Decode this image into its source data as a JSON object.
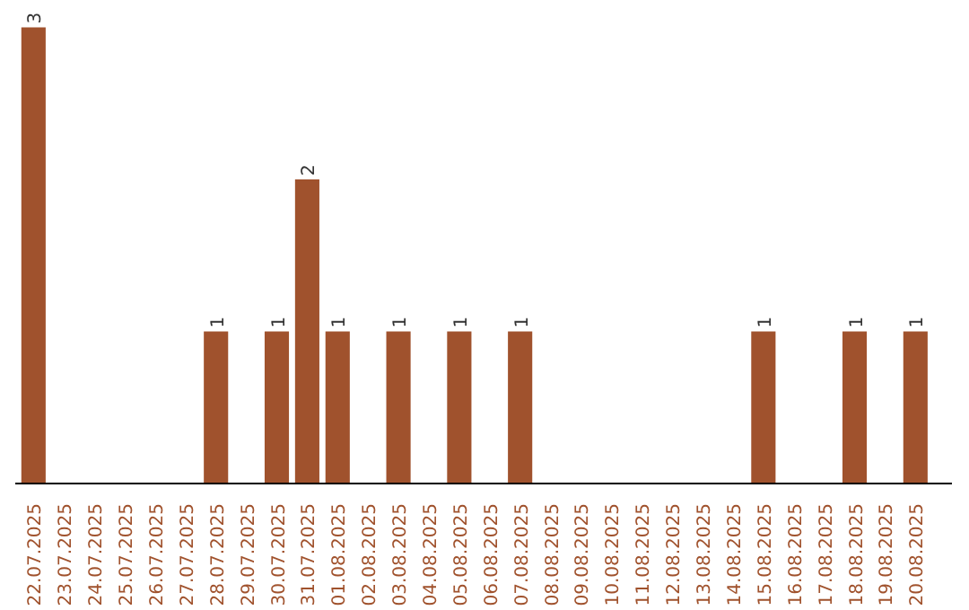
{
  "chart_data": {
    "type": "bar",
    "categories": [
      "22.07.2025",
      "23.07.2025",
      "24.07.2025",
      "25.07.2025",
      "26.07.2025",
      "27.07.2025",
      "28.07.2025",
      "29.07.2025",
      "30.07.2025",
      "31.07.2025",
      "01.08.2025",
      "02.08.2025",
      "03.08.2025",
      "04.08.2025",
      "05.08.2025",
      "06.08.2025",
      "07.08.2025",
      "08.08.2025",
      "09.08.2025",
      "10.08.2025",
      "11.08.2025",
      "12.08.2025",
      "13.08.2025",
      "14.08.2025",
      "15.08.2025",
      "16.08.2025",
      "17.08.2025",
      "18.08.2025",
      "19.08.2025",
      "20.08.2025"
    ],
    "values": [
      3,
      0,
      0,
      0,
      0,
      0,
      1,
      0,
      1,
      2,
      1,
      0,
      1,
      0,
      1,
      0,
      1,
      0,
      0,
      0,
      0,
      0,
      0,
      0,
      1,
      0,
      0,
      1,
      0,
      1
    ],
    "value_labels": [
      "3",
      null,
      null,
      null,
      null,
      null,
      "1",
      null,
      "1",
      "2",
      "1",
      null,
      "1",
      null,
      "1",
      null,
      "1",
      null,
      null,
      null,
      null,
      null,
      null,
      null,
      "1",
      null,
      null,
      "1",
      null,
      "1"
    ],
    "color": "#a0522d",
    "ylim": [
      0,
      3
    ]
  }
}
